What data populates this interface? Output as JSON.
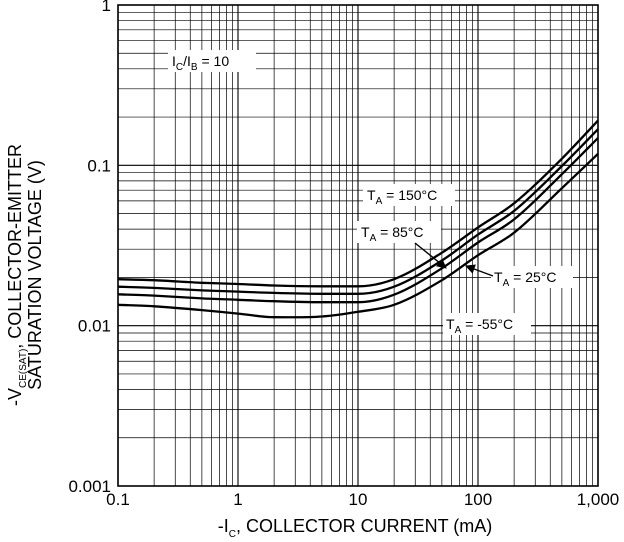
{
  "chart_data": {
    "type": "line",
    "xscale": "log",
    "yscale": "log",
    "xlim": [
      0.1,
      1000
    ],
    "ylim": [
      0.001,
      1
    ],
    "grid": true,
    "xlabel": {
      "prefix": "-I",
      "sub": "C",
      "suffix": ", COLLECTOR CURRENT (mA)"
    },
    "ylabel": {
      "line1_prefix": "-V",
      "line1_sub": "CE(SAT)",
      "line1_suffix": ", COLLECTOR-EMITTER",
      "line2": "SATURATION VOLTAGE (V)"
    },
    "x_ticks": [
      {
        "value": 0.1,
        "label": "0.1"
      },
      {
        "value": 1,
        "label": "1"
      },
      {
        "value": 10,
        "label": "10"
      },
      {
        "value": 100,
        "label": "100"
      },
      {
        "value": 1000,
        "label": "1,000"
      }
    ],
    "y_ticks": [
      {
        "value": 1,
        "label": "1"
      },
      {
        "value": 0.1,
        "label": "0.1"
      },
      {
        "value": 0.01,
        "label": "0.01"
      },
      {
        "value": 0.001,
        "label": "0.001"
      }
    ],
    "condition": {
      "a": "I",
      "a_sub": "C",
      "b": "/I",
      "b_sub": "B",
      "rest": " = 10"
    },
    "series": [
      {
        "name": "T_A = 150°C",
        "label_prefix": "T",
        "label_sub": "A",
        "label_suffix": " = 150°C",
        "x": [
          0.1,
          0.2,
          0.5,
          1,
          2,
          5,
          10,
          20,
          50,
          100,
          200,
          500,
          1000
        ],
        "y": [
          0.0195,
          0.0192,
          0.0185,
          0.0182,
          0.0178,
          0.0176,
          0.0176,
          0.0195,
          0.0285,
          0.041,
          0.058,
          0.11,
          0.19
        ]
      },
      {
        "name": "T_A = 85°C",
        "label_prefix": "T",
        "label_sub": "A",
        "label_suffix": " = 85°C",
        "x": [
          0.1,
          0.2,
          0.5,
          1,
          2,
          5,
          10,
          20,
          50,
          100,
          200,
          500,
          1000
        ],
        "y": [
          0.0175,
          0.0172,
          0.0166,
          0.0163,
          0.016,
          0.0158,
          0.0158,
          0.0175,
          0.0255,
          0.037,
          0.052,
          0.099,
          0.168
        ]
      },
      {
        "name": "T_A = 25°C",
        "label_prefix": "T",
        "label_sub": "A",
        "label_suffix": " = 25°C",
        "x": [
          0.1,
          0.2,
          0.5,
          1,
          2,
          5,
          10,
          20,
          50,
          100,
          200,
          500,
          1000
        ],
        "y": [
          0.0157,
          0.0154,
          0.0148,
          0.0145,
          0.0142,
          0.014,
          0.014,
          0.0156,
          0.0228,
          0.033,
          0.046,
          0.088,
          0.148
        ]
      },
      {
        "name": "T_A = -55°C",
        "label_prefix": "T",
        "label_sub": "A",
        "label_suffix": " = -55°C",
        "x": [
          0.1,
          0.2,
          0.5,
          1,
          2,
          5,
          10,
          20,
          50,
          100,
          200,
          500,
          1000
        ],
        "y": [
          0.0135,
          0.0132,
          0.0125,
          0.0119,
          0.0113,
          0.0114,
          0.0122,
          0.0135,
          0.0192,
          0.0275,
          0.038,
          0.072,
          0.118
        ]
      }
    ]
  }
}
